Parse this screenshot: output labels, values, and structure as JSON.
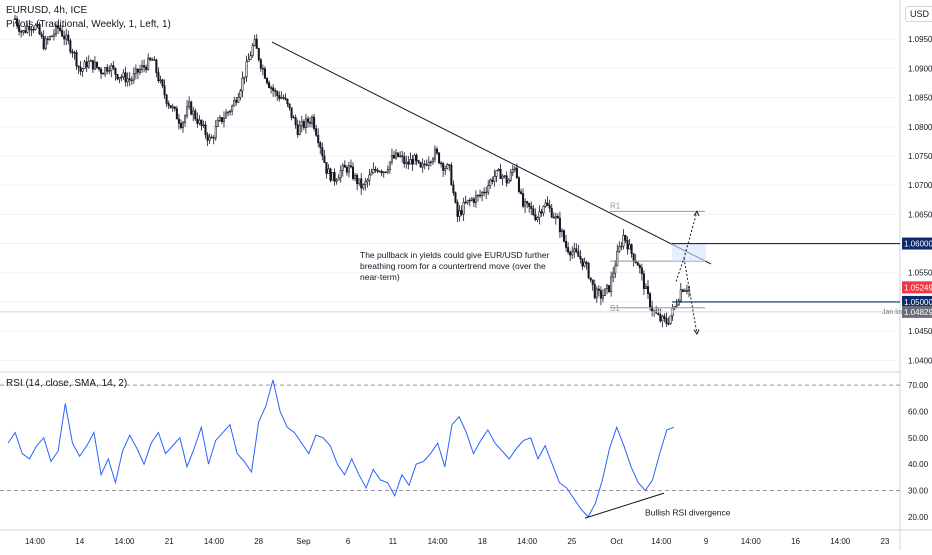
{
  "header": {
    "symbol_line": "EURUSD, 4h, ICE",
    "indicator_line": "Pivots (Traditional, Weekly, 1, Left, 1)",
    "currency": "USD"
  },
  "annotations": {
    "main_text": [
      "The pullback in yields could give EUR/USD further",
      "breathing room for a countertrend move (over the",
      "near-term)"
    ],
    "rsi_text": "Bullish RSI divergence",
    "pivot_r1": "R1",
    "pivot_s1": "S1",
    "jan_low": "Jan low"
  },
  "rsi_header": "RSI (14, close, SMA, 14, 2)",
  "colors": {
    "candle": "#131722",
    "rsi_line": "#2962ff",
    "level_line": "#0d2a6b",
    "price_badge": "#f23645",
    "grid": "#f0f3fa"
  },
  "chart_data": [
    {
      "type": "candlestick",
      "ylim": [
        1.038,
        1.1
      ],
      "y_ticks": [
        "1.04000",
        "1.04500",
        "1.05000",
        "1.05500",
        "1.06000",
        "1.06500",
        "1.07000",
        "1.07500",
        "1.08000",
        "1.08500",
        "1.09000",
        "1.09500"
      ],
      "x_ticks": [
        "14:00",
        "14",
        "14:00",
        "21",
        "14:00",
        "28",
        "Sep",
        "6",
        "11",
        "14:00",
        "18",
        "14:00",
        "25",
        "Oct",
        "14:00",
        "9",
        "14:00",
        "16",
        "14:00",
        "23"
      ],
      "close_path": [
        1.0985,
        1.096,
        1.0975,
        1.097,
        1.094,
        1.0955,
        1.097,
        1.095,
        1.093,
        1.0895,
        1.091,
        1.0905,
        1.0895,
        1.0905,
        1.089,
        1.0885,
        1.088,
        1.0895,
        1.0905,
        1.0915,
        1.0875,
        1.0845,
        1.0825,
        1.0805,
        1.0835,
        1.0815,
        1.0795,
        1.0775,
        1.0805,
        1.082,
        1.0835,
        1.0865,
        1.0905,
        1.0945,
        1.0905,
        1.0875,
        1.0855,
        1.085,
        1.0825,
        1.0795,
        1.0805,
        1.0815,
        1.0775,
        1.0725,
        1.071,
        1.0725,
        1.073,
        1.071,
        1.0695,
        1.0715,
        1.073,
        1.0725,
        1.0745,
        1.075,
        1.0735,
        1.0745,
        1.0725,
        1.0745,
        1.0755,
        1.0735,
        1.0725,
        1.0645,
        1.0665,
        1.0675,
        1.068,
        1.0695,
        1.0715,
        1.072,
        1.0705,
        1.0735,
        1.0665,
        1.066,
        1.0645,
        1.067,
        1.0655,
        1.0635,
        1.0595,
        1.0585,
        1.0575,
        1.0555,
        1.0515,
        1.051,
        1.0525,
        1.0575,
        1.0615,
        1.0585,
        1.0565,
        1.052,
        1.0485,
        1.047,
        1.0465,
        1.049,
        1.0525,
        1.0525
      ],
      "levels": [
        {
          "label": "1.06000",
          "value": 1.06
        },
        {
          "label": "1.05000",
          "value": 1.05
        }
      ],
      "pivot_levels": {
        "R1": 1.0655,
        "pivot": 1.057,
        "S1": 1.049
      },
      "jan_low": {
        "label": "1.04829",
        "value": 1.0483
      },
      "last_price": {
        "label": "1.05249",
        "value": 1.0525
      }
    },
    {
      "type": "line",
      "title": "RSI (14, close, SMA, 14, 2)",
      "ylim": [
        15,
        75
      ],
      "y_ticks": [
        "20.00",
        "30.00",
        "40.00",
        "50.00",
        "60.00",
        "70.00"
      ],
      "reference_lines": [
        70,
        30
      ],
      "values": [
        48,
        52,
        44,
        42,
        47,
        50,
        41,
        45,
        63,
        48,
        43,
        47,
        52,
        36,
        42,
        33,
        45,
        51,
        46,
        40,
        48,
        52,
        44,
        47,
        50,
        39,
        46,
        54,
        40,
        49,
        52,
        55,
        44,
        41,
        37,
        56,
        62,
        72,
        60,
        54,
        52,
        48,
        44,
        51,
        50,
        47,
        40,
        36,
        42,
        36,
        31,
        38,
        34,
        33,
        28,
        36,
        32,
        40,
        41,
        44,
        48,
        39,
        55,
        58,
        52,
        44,
        49,
        53,
        48,
        45,
        42,
        46,
        49,
        50,
        42,
        47,
        40,
        33,
        31,
        27,
        23,
        20,
        25,
        34,
        46,
        54,
        47,
        39,
        33,
        30,
        34,
        44,
        53,
        54
      ]
    }
  ]
}
